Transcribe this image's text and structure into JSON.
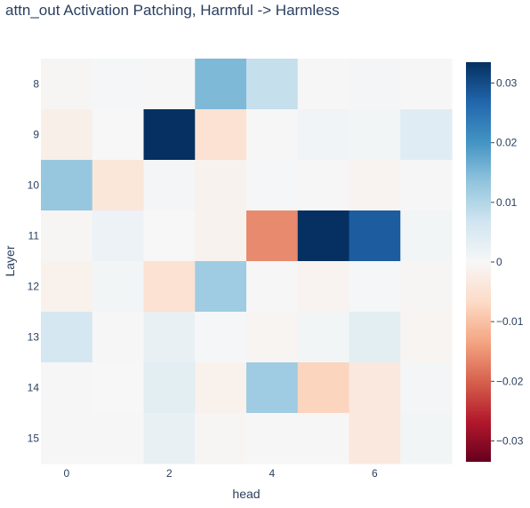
{
  "chart_data": {
    "type": "heatmap",
    "title": "attn_out Activation Patching, Harmful -> Harmless",
    "xlabel": "head",
    "ylabel": "Layer",
    "x": [
      0,
      1,
      2,
      3,
      4,
      5,
      6,
      7
    ],
    "y": [
      8,
      9,
      10,
      11,
      12,
      13,
      14,
      15
    ],
    "x_tick_labels": [
      "0",
      "2",
      "4",
      "6"
    ],
    "x_tick_values": [
      0,
      2,
      4,
      6
    ],
    "y_tick_labels": [
      "8",
      "9",
      "10",
      "11",
      "12",
      "13",
      "14",
      "15"
    ],
    "z": [
      [
        -0.0005,
        0.0003,
        -0.0002,
        0.015,
        0.008,
        -0.0002,
        0.0006,
        -0.0002
      ],
      [
        -0.002,
        0.0,
        0.036,
        -0.005,
        0.0002,
        0.0012,
        0.0008,
        0.004
      ],
      [
        0.013,
        -0.004,
        0.0006,
        -0.0012,
        0.0004,
        0.0002,
        -0.001,
        0.0002
      ],
      [
        -0.0005,
        0.002,
        0.0,
        -0.0012,
        -0.016,
        0.035,
        0.028,
        0.0008
      ],
      [
        -0.0015,
        0.0008,
        -0.005,
        0.012,
        0.0002,
        -0.001,
        0.0004,
        -0.0004
      ],
      [
        0.006,
        0.0002,
        0.0025,
        0.0004,
        -0.0008,
        0.0008,
        0.0035,
        -0.0008
      ],
      [
        -0.0002,
        0.0,
        0.0035,
        -0.0015,
        0.012,
        -0.0075,
        -0.0035,
        0.0006
      ],
      [
        -0.0002,
        -0.0002,
        0.0025,
        -0.0004,
        0.0002,
        -0.0002,
        -0.0035,
        0.0008
      ]
    ],
    "zrange": [
      -0.0335,
      0.0335
    ],
    "colorscale": "RdBu",
    "colorbar_tick_values": [
      0.03,
      0.02,
      0.01,
      0,
      -0.01,
      -0.02,
      -0.03
    ],
    "colorbar_tick_labels": [
      "0.03",
      "0.02",
      "0.01",
      "0",
      "−0.01",
      "−0.02",
      "−0.03"
    ],
    "colors": {
      "text": "#2a3f5f",
      "scale": [
        "#67001f",
        "#b2182b",
        "#d6604d",
        "#f4a582",
        "#fddbc7",
        "#f7f7f7",
        "#d1e5f0",
        "#92c5de",
        "#4393c3",
        "#2166ac",
        "#053061"
      ]
    }
  }
}
